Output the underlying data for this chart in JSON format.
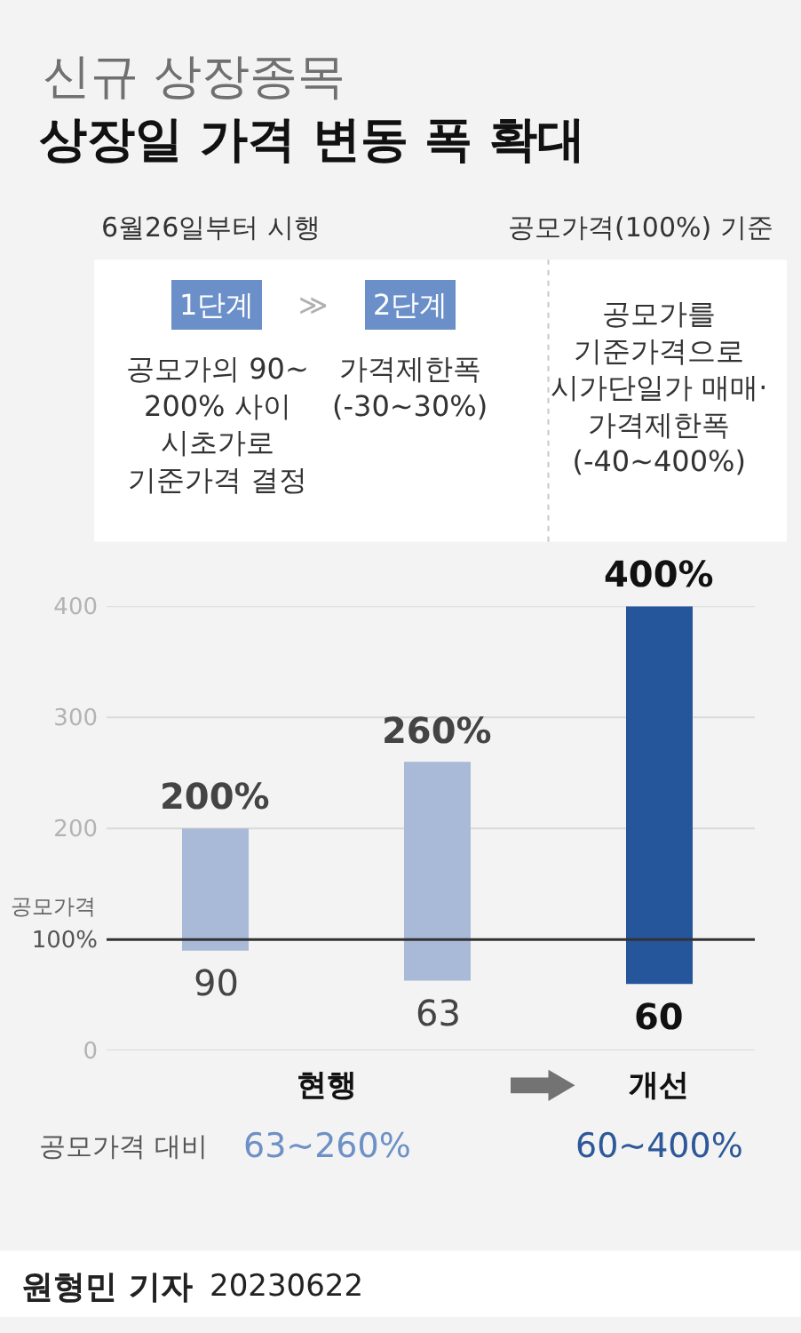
{
  "chart_data": {
    "type": "bar",
    "title": "상장일 가격 변동 폭 확대",
    "subtitle": "신규 상장종목",
    "categories": [
      null,
      null,
      null
    ],
    "values": [
      110,
      197,
      340
    ],
    "base": [
      90,
      63,
      60
    ],
    "colors": [
      "#a8bad7",
      "#a8bad7",
      "#25559b"
    ],
    "ylim": [
      0,
      400
    ],
    "yticks": [
      0,
      {
        "value": 100,
        "label": "100%"
      },
      200,
      300,
      400
    ],
    "grid": "y",
    "tick_labels": "y",
    "ref_lines": [
      {
        "axis": "y",
        "value": 100,
        "label": "공모가격",
        "color": "#333333"
      }
    ],
    "annotations": [
      "6월26일부터 시행",
      "공모가격(100%) 기준",
      "1단계",
      "≫",
      "2단계",
      "공모가의 90~\n200% 사이\n시초가로\n기준가격 결정",
      "가격제한폭\n(-30~30%)",
      "공모가를\n기준가격으로\n시가단일가 매매·\n가격제한폭\n(-40~400%)",
      {
        "text": "200%",
        "y": 200
      },
      {
        "text": "90",
        "y": 90
      },
      {
        "text": "260%",
        "y": 260
      },
      {
        "text": "63",
        "y": 63
      },
      {
        "text": "400%",
        "y": 400
      },
      {
        "text": "60",
        "y": 60
      },
      "현행",
      "개선",
      "공모가격 대비",
      "63~260%",
      "60~400%",
      "원형민 기자",
      "20230622"
    ]
  }
}
